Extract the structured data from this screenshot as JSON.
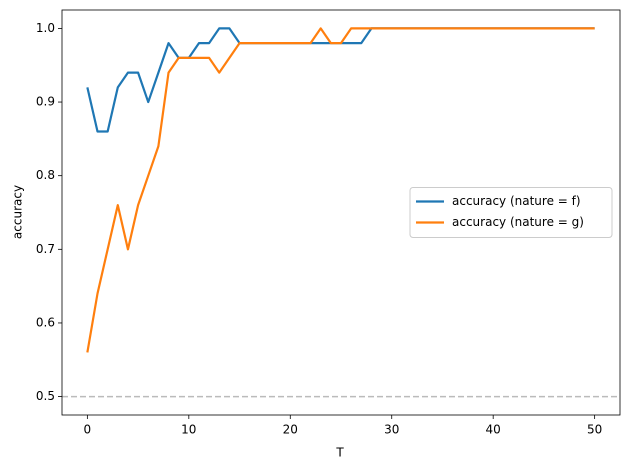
{
  "chart_data": {
    "type": "line",
    "xlabel": "T",
    "ylabel": "accuracy",
    "x": [
      0,
      1,
      2,
      3,
      4,
      5,
      6,
      7,
      8,
      9,
      10,
      11,
      12,
      13,
      14,
      15,
      16,
      17,
      18,
      19,
      20,
      21,
      22,
      23,
      24,
      25,
      26,
      27,
      28,
      29,
      30,
      31,
      32,
      33,
      34,
      35,
      36,
      37,
      38,
      39,
      40,
      41,
      42,
      43,
      44,
      45,
      46,
      47,
      48,
      49,
      50
    ],
    "series": [
      {
        "name": "accuracy (nature = f)",
        "color": "#1f77b4",
        "values": [
          0.92,
          0.86,
          0.86,
          0.92,
          0.94,
          0.94,
          0.9,
          0.94,
          0.98,
          0.96,
          0.96,
          0.98,
          0.98,
          1.0,
          1.0,
          0.98,
          0.98,
          0.98,
          0.98,
          0.98,
          0.98,
          0.98,
          0.98,
          0.98,
          0.98,
          0.98,
          0.98,
          0.98,
          1.0,
          1.0,
          1.0,
          1.0,
          1.0,
          1.0,
          1.0,
          1.0,
          1.0,
          1.0,
          1.0,
          1.0,
          1.0,
          1.0,
          1.0,
          1.0,
          1.0,
          1.0,
          1.0,
          1.0,
          1.0,
          1.0,
          1.0
        ]
      },
      {
        "name": "accuracy (nature = g)",
        "color": "#ff7f0e",
        "values": [
          0.56,
          0.64,
          0.7,
          0.76,
          0.7,
          0.76,
          0.8,
          0.84,
          0.94,
          0.96,
          0.96,
          0.96,
          0.96,
          0.94,
          0.96,
          0.98,
          0.98,
          0.98,
          0.98,
          0.98,
          0.98,
          0.98,
          0.98,
          1.0,
          0.98,
          0.98,
          1.0,
          1.0,
          1.0,
          1.0,
          1.0,
          1.0,
          1.0,
          1.0,
          1.0,
          1.0,
          1.0,
          1.0,
          1.0,
          1.0,
          1.0,
          1.0,
          1.0,
          1.0,
          1.0,
          1.0,
          1.0,
          1.0,
          1.0,
          1.0,
          1.0
        ]
      }
    ],
    "hline": {
      "value": 0.5,
      "color": "#bbbbbb"
    },
    "xlim": [
      -2.5,
      52.5
    ],
    "ylim": [
      0.475,
      1.025
    ],
    "xticks": [
      0,
      10,
      20,
      30,
      40,
      50
    ],
    "yticks": [
      0.5,
      0.6,
      0.7,
      0.8,
      0.9,
      {
        "value": 1,
        "label": "1.0"
      }
    ],
    "legend": "center right",
    "grid": false
  }
}
